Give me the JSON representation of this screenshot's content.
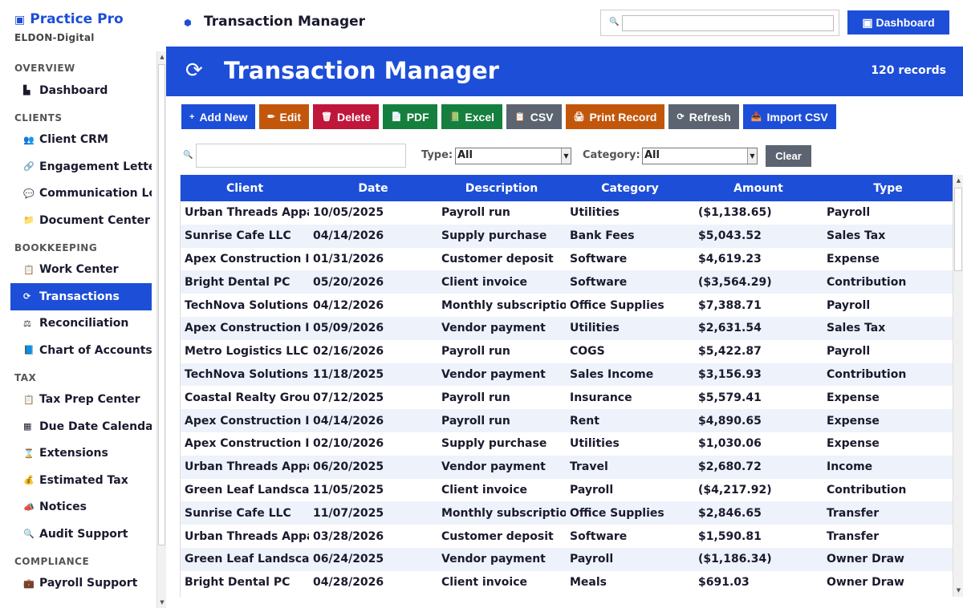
{
  "app": {
    "name": "Practice Pro",
    "org": "ELDON-Digital"
  },
  "sidebar": {
    "sections": [
      {
        "title": "OVERVIEW",
        "items": [
          {
            "label": "Dashboard",
            "icon": "bar-chart-icon"
          }
        ]
      },
      {
        "title": "CLIENTS",
        "items": [
          {
            "label": "Client CRM",
            "icon": "people-icon"
          },
          {
            "label": "Engagement Letters",
            "icon": "link-icon"
          },
          {
            "label": "Communication Log",
            "icon": "chat-icon"
          },
          {
            "label": "Document Center",
            "icon": "folder-icon"
          }
        ]
      },
      {
        "title": "BOOKKEEPING",
        "items": [
          {
            "label": "Work Center",
            "icon": "clipboard-icon"
          },
          {
            "label": "Transactions",
            "icon": "refresh-icon",
            "active": true
          },
          {
            "label": "Reconciliation",
            "icon": "scale-icon"
          },
          {
            "label": "Chart of Accounts",
            "icon": "book-icon"
          }
        ]
      },
      {
        "title": "TAX",
        "items": [
          {
            "label": "Tax Prep Center",
            "icon": "clipboard-icon"
          },
          {
            "label": "Due Date Calendar",
            "icon": "calendar-icon"
          },
          {
            "label": "Extensions",
            "icon": "hourglass-icon"
          },
          {
            "label": "Estimated Tax",
            "icon": "money-bag-icon"
          },
          {
            "label": "Notices",
            "icon": "megaphone-icon"
          },
          {
            "label": "Audit Support",
            "icon": "magnifier-icon"
          }
        ]
      },
      {
        "title": "COMPLIANCE",
        "items": [
          {
            "label": "Payroll Support",
            "icon": "briefcase-icon"
          }
        ]
      }
    ]
  },
  "header": {
    "title": "Transaction Manager",
    "search_placeholder": "",
    "dashboard_label": "Dashboard"
  },
  "banner": {
    "title": "Transaction Manager",
    "record_count": "120 records"
  },
  "toolbar": [
    {
      "label": "Add New",
      "glyph": "+",
      "color": "#1d4ed8",
      "name": "add-new-button"
    },
    {
      "label": "Edit",
      "glyph": "✏",
      "color": "#c2570c",
      "name": "edit-button"
    },
    {
      "label": "Delete",
      "glyph": "🗑",
      "color": "#c0163c",
      "name": "delete-button"
    },
    {
      "label": "PDF",
      "glyph": "📄",
      "color": "#15803d",
      "name": "pdf-button"
    },
    {
      "label": "Excel",
      "glyph": "📗",
      "color": "#15803d",
      "name": "excel-button"
    },
    {
      "label": "CSV",
      "glyph": "📋",
      "color": "#5b6470",
      "name": "csv-button"
    },
    {
      "label": "Print Record",
      "glyph": "🖨",
      "color": "#c2570c",
      "name": "print-record-button"
    },
    {
      "label": "Refresh",
      "glyph": "⟳",
      "color": "#5b6470",
      "name": "refresh-button"
    },
    {
      "label": "Import CSV",
      "glyph": "📥",
      "color": "#1d4ed8",
      "name": "import-csv-button"
    }
  ],
  "filters": {
    "search_value": "",
    "type_label": "Type:",
    "type_value": "All",
    "category_label": "Category:",
    "category_value": "All",
    "clear_label": "Clear"
  },
  "table": {
    "columns": [
      "Client",
      "Date",
      "Description",
      "Category",
      "Amount",
      "Type"
    ],
    "rows": [
      [
        "Urban Threads Apparel",
        "10/05/2025",
        "Payroll run",
        "Utilities",
        "($1,138.65)",
        "Payroll"
      ],
      [
        "Sunrise Cafe LLC",
        "04/14/2026",
        "Supply purchase",
        "Bank Fees",
        "$5,043.52",
        "Sales Tax"
      ],
      [
        "Apex Construction Inc",
        "01/31/2026",
        "Customer deposit",
        "Software",
        "$4,619.23",
        "Expense"
      ],
      [
        "Bright Dental PC",
        "05/20/2026",
        "Client invoice",
        "Software",
        "($3,564.29)",
        "Contribution"
      ],
      [
        "TechNova Solutions",
        "04/12/2026",
        "Monthly subscription",
        "Office Supplies",
        "$7,388.71",
        "Payroll"
      ],
      [
        "Apex Construction Inc",
        "05/09/2026",
        "Vendor payment",
        "Utilities",
        "$2,631.54",
        "Sales Tax"
      ],
      [
        "Metro Logistics LLC",
        "02/16/2026",
        "Payroll run",
        "COGS",
        "$5,422.87",
        "Payroll"
      ],
      [
        "TechNova Solutions",
        "11/18/2025",
        "Vendor payment",
        "Sales Income",
        "$3,156.93",
        "Contribution"
      ],
      [
        "Coastal Realty Group",
        "07/12/2025",
        "Payroll run",
        "Insurance",
        "$5,579.41",
        "Expense"
      ],
      [
        "Apex Construction Inc",
        "04/14/2026",
        "Payroll run",
        "Rent",
        "$4,890.65",
        "Expense"
      ],
      [
        "Apex Construction Inc",
        "02/10/2026",
        "Supply purchase",
        "Utilities",
        "$1,030.06",
        "Expense"
      ],
      [
        "Urban Threads Apparel",
        "06/20/2025",
        "Vendor payment",
        "Travel",
        "$2,680.72",
        "Income"
      ],
      [
        "Green Leaf Landscaping",
        "11/05/2025",
        "Client invoice",
        "Payroll",
        "($4,217.92)",
        "Contribution"
      ],
      [
        "Sunrise Cafe LLC",
        "11/07/2025",
        "Monthly subscription",
        "Office Supplies",
        "$2,846.65",
        "Transfer"
      ],
      [
        "Urban Threads Apparel",
        "03/28/2026",
        "Customer deposit",
        "Software",
        "$1,590.81",
        "Transfer"
      ],
      [
        "Green Leaf Landscaping",
        "06/24/2025",
        "Vendor payment",
        "Payroll",
        "($1,186.34)",
        "Owner Draw"
      ],
      [
        "Bright Dental PC",
        "04/28/2026",
        "Client invoice",
        "Meals",
        "$691.03",
        "Owner Draw"
      ]
    ]
  }
}
